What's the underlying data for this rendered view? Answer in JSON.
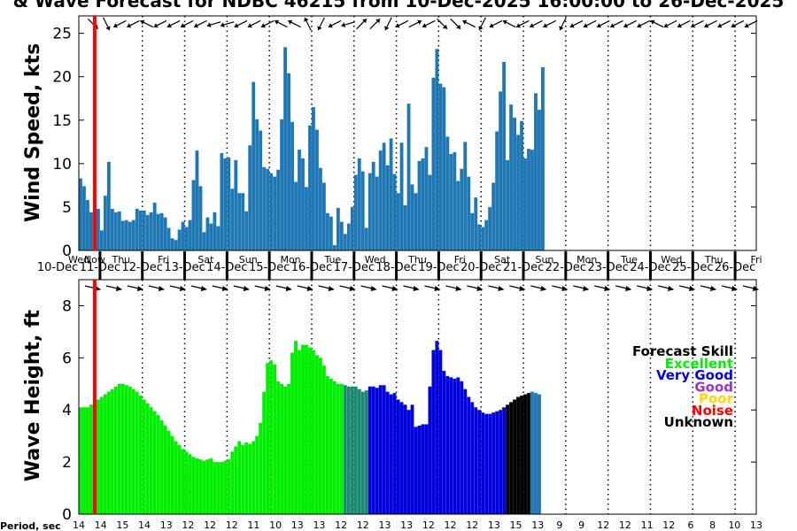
{
  "title": "& Wave Forecast for NDBC 46215 from 10-Dec-2025 16:00:00 to 26-Dec-2025",
  "colors": {
    "bar_blue": "#1f77b4",
    "now_line": "#ff0000",
    "skill_Excellent": "#00ee00",
    "skill_Very_Good": "#0000dd",
    "skill_Good": "#9933cc",
    "skill_Poor": "#ffd700",
    "skill_Noise": "#ff0000",
    "skill_Unknown": "#000000"
  },
  "now_label": "Now",
  "days": [
    {
      "weekday": "Wed",
      "date": "10-Dec"
    },
    {
      "weekday": "Thu",
      "date": "11-Dec"
    },
    {
      "weekday": "Fri",
      "date": "12-Dec"
    },
    {
      "weekday": "Sat",
      "date": "13-Dec"
    },
    {
      "weekday": "Sun",
      "date": "14-Dec"
    },
    {
      "weekday": "Mon",
      "date": "15-Dec"
    },
    {
      "weekday": "Tue",
      "date": "16-Dec"
    },
    {
      "weekday": "Wed",
      "date": "17-Dec"
    },
    {
      "weekday": "Thu",
      "date": "18-Dec"
    },
    {
      "weekday": "Fri",
      "date": "19-Dec"
    },
    {
      "weekday": "Sat",
      "date": "20-Dec"
    },
    {
      "weekday": "Sun",
      "date": "21-Dec"
    },
    {
      "weekday": "Mon",
      "date": "22-Dec"
    },
    {
      "weekday": "Tue",
      "date": "23-Dec"
    },
    {
      "weekday": "Wed",
      "date": "24-Dec"
    },
    {
      "weekday": "Thu",
      "date": "25-Dec"
    },
    {
      "weekday": "Fri",
      "date": "26-Dec"
    }
  ],
  "legend": {
    "title": "Forecast Skill",
    "entries": [
      {
        "label": "Excellent",
        "key": "skill_Excellent"
      },
      {
        "label": "Very Good",
        "key": "skill_Very_Good"
      },
      {
        "label": "Good",
        "key": "skill_Good"
      },
      {
        "label": "Poor",
        "key": "skill_Poor"
      },
      {
        "label": "Noise",
        "key": "skill_Noise"
      },
      {
        "label": "Unknown",
        "key": "skill_Unknown"
      }
    ]
  },
  "period_label": "Period, sec",
  "periods": [
    "14",
    "14",
    "15",
    "14",
    "13",
    "12",
    "12",
    "12",
    "11",
    "10",
    "13",
    "13",
    "12",
    "12",
    "13",
    "13",
    "12",
    "12",
    "12",
    "13",
    "15",
    "13",
    "9",
    "9",
    "12",
    "12",
    "11",
    "12",
    "6",
    "8",
    "10",
    "13"
  ],
  "chart_data": [
    {
      "type": "bar",
      "ylabel": "Wind Speed, kts",
      "ylim": [
        0,
        27
      ],
      "yticks": [
        0,
        5,
        10,
        15,
        20,
        25
      ],
      "grid": false,
      "x_unit": "days since 10-Dec 00:00",
      "x_range": [
        0.5,
        16.5
      ],
      "now": 0.875,
      "x_start": 0.5,
      "x_step": 0.08333,
      "values": [
        8.3,
        7.4,
        5.8,
        4.4,
        4.6,
        4.8,
        2.3,
        6.3,
        10.2,
        4.8,
        4.4,
        4.5,
        3.4,
        3.5,
        3.3,
        3.5,
        4.8,
        4.6,
        4.6,
        4.1,
        4.4,
        5.5,
        4.2,
        4.3,
        3.8,
        2.6,
        1.4,
        1.2,
        2.4,
        3.3,
        2.7,
        3.5,
        8.1,
        11.5,
        7.4,
        2.1,
        3.8,
        3.1,
        4.4,
        2.8,
        11.2,
        10.6,
        10.7,
        7.1,
        10.4,
        6.6,
        6.6,
        4.5,
        12.1,
        19.4,
        15.1,
        13.8,
        9.6,
        9.4,
        8.9,
        8.5,
        9.3,
        15.1,
        23.4,
        20.4,
        14.8,
        7.9,
        11.6,
        10.6,
        7.3,
        14.4,
        16.5,
        13.9,
        9.5,
        7.8,
        4.3,
        3.9,
        0.6,
        4.9,
        3.3,
        1.9,
        3.1,
        5.0,
        8.7,
        10.6,
        9.1,
        2.6,
        8.9,
        10.2,
        8.5,
        11.5,
        12.4,
        9.8,
        12.9,
        8.8,
        6.6,
        12.4,
        5.2,
        16.9,
        7.6,
        6.6,
        10.3,
        10.6,
        11.9,
        8.7,
        19.9,
        23.2,
        19.2,
        18.8,
        13.1,
        11.1,
        11.3,
        8.0,
        9.4,
        12.5,
        8.5,
        4.3,
        6.1,
        3.0,
        2.7,
        3.5,
        5.0,
        7.8,
        13.7,
        18.3,
        21.7,
        10.4,
        16.8,
        15.3,
        13.3,
        14.9,
        10.6,
        11.7,
        11.6,
        18.1,
        16.2,
        21.1
      ],
      "direction_arrows": [
        [
          1.0,
          -1.0
        ],
        [
          0.5,
          -1.0
        ],
        [
          -1.0,
          -0.5
        ],
        [
          -1.0,
          -0.5
        ],
        [
          -1.0,
          0.5
        ],
        [
          -1.0,
          -0.5
        ],
        [
          -1.0,
          -0.5
        ],
        [
          -1.0,
          -0.5
        ],
        [
          -1.0,
          -0.5
        ],
        [
          -1.0,
          -0.3
        ],
        [
          -1.0,
          -0.3
        ],
        [
          -1.0,
          -0.5
        ],
        [
          -1.0,
          -0.5
        ],
        [
          -1.0,
          -0.5
        ],
        [
          -1.0,
          0.5
        ],
        [
          -1.0,
          0.5
        ],
        [
          -0.5,
          1.0
        ],
        [
          -0.5,
          -1.0
        ],
        [
          -1.0,
          -0.5
        ],
        [
          -1.0,
          -0.3
        ],
        [
          1.0,
          1.0
        ],
        [
          1.0,
          1.0
        ],
        [
          -0.5,
          -1.0
        ],
        [
          -1.0,
          -0.5
        ],
        [
          1.0,
          0.5
        ],
        [
          -1.0,
          -0.5
        ],
        [
          1.0,
          -1.0
        ],
        [
          1.0,
          -1.0
        ],
        [
          -1.0,
          0.5
        ],
        [
          -0.5,
          -1.0
        ],
        [
          -1.0,
          -0.5
        ],
        [
          -1.0,
          0.5
        ],
        [
          -1.0,
          -0.5
        ],
        [
          -1.0,
          -0.5
        ],
        [
          -1.0,
          -0.5
        ],
        [
          -0.5,
          -1.0
        ],
        [
          -1.0,
          -0.5
        ],
        [
          -1.0,
          -0.5
        ],
        [
          -1.0,
          -0.5
        ],
        [
          -1.0,
          -0.5
        ],
        [
          -1.0,
          -0.5
        ],
        [
          -1.0,
          -0.5
        ],
        [
          -1.0,
          0.5
        ],
        [
          -1.0,
          -0.5
        ],
        [
          -1.0,
          -0.5
        ],
        [
          -1.0,
          -0.5
        ],
        [
          -1.0,
          -0.5
        ],
        [
          -1.0,
          -0.5
        ],
        [
          -1.0,
          -0.5
        ],
        [
          -1.0,
          -0.5
        ]
      ]
    },
    {
      "type": "bar",
      "ylabel": "Wave Height, ft",
      "ylim": [
        0,
        9
      ],
      "yticks": [
        0,
        2,
        4,
        6,
        8
      ],
      "grid": false,
      "x_unit": "days since 10-Dec 00:00",
      "x_range": [
        0.5,
        16.5
      ],
      "now": 0.875,
      "x_start": 0.5,
      "x_step": 0.08333,
      "values": [
        4.1,
        4.1,
        4.1,
        4.2,
        4.3,
        4.4,
        4.5,
        4.6,
        4.7,
        4.8,
        4.9,
        5.0,
        5.0,
        4.95,
        4.9,
        4.8,
        4.7,
        4.55,
        4.4,
        4.25,
        4.1,
        3.95,
        3.8,
        3.6,
        3.4,
        3.2,
        3.0,
        2.8,
        2.65,
        2.5,
        2.4,
        2.3,
        2.2,
        2.15,
        2.1,
        2.05,
        2.1,
        2.15,
        2.0,
        2.0,
        2.0,
        2.05,
        2.1,
        2.4,
        2.6,
        2.8,
        2.65,
        2.75,
        2.7,
        2.8,
        3.0,
        3.5,
        4.7,
        5.8,
        5.9,
        5.75,
        5.1,
        5.0,
        4.9,
        5.0,
        6.2,
        6.65,
        6.3,
        6.5,
        6.5,
        6.4,
        6.3,
        6.1,
        6.0,
        5.7,
        5.3,
        5.2,
        5.1,
        5.0,
        5.0,
        4.95,
        4.9,
        4.9,
        4.9,
        4.8,
        4.7,
        4.75,
        4.9,
        4.9,
        4.85,
        4.95,
        4.95,
        4.7,
        4.6,
        4.65,
        4.4,
        4.3,
        4.2,
        4.0,
        4.2,
        3.35,
        3.4,
        3.45,
        3.45,
        4.9,
        6.3,
        6.65,
        6.3,
        5.5,
        5.3,
        5.25,
        5.2,
        5.25,
        5.1,
        4.8,
        4.5,
        4.3,
        4.1,
        4.0,
        3.9,
        3.85,
        3.85,
        3.9,
        3.95,
        4.0,
        4.1,
        4.2,
        4.3,
        4.4,
        4.5,
        4.55,
        4.6,
        4.65,
        4.7,
        4.65,
        4.6
      ],
      "skill_segments": [
        {
          "skill": "Excellent",
          "from": 0.5,
          "to": 6.67
        },
        {
          "skill": "Unknown-teal",
          "from": 6.67,
          "to": 7.25
        },
        {
          "skill": "Very Good",
          "from": 7.25,
          "to": 10.5
        },
        {
          "skill": "Unknown",
          "from": 10.5,
          "to": 11.13
        },
        {
          "skill": "Default",
          "from": 11.13,
          "to": 16.5
        }
      ],
      "direction_arrows": "east-southeast"
    }
  ]
}
